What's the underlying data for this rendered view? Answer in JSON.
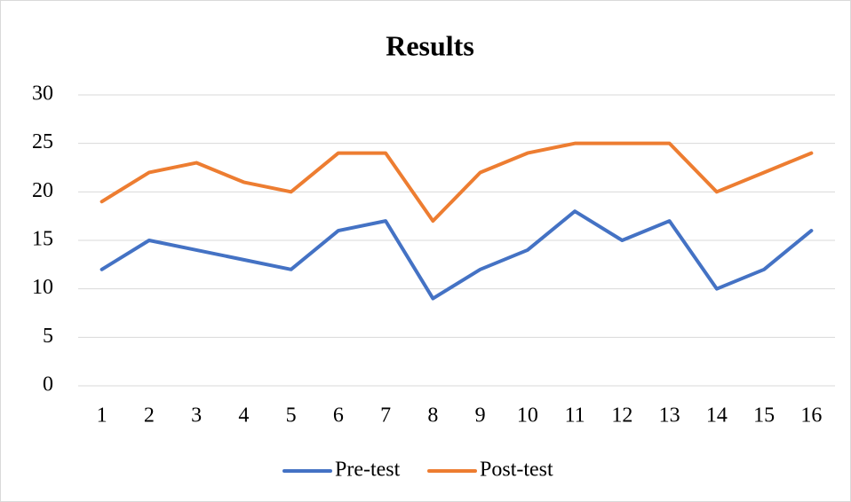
{
  "chart_data": {
    "type": "line",
    "title": "Results",
    "categories": [
      "1",
      "2",
      "3",
      "4",
      "5",
      "6",
      "7",
      "8",
      "9",
      "10",
      "11",
      "12",
      "13",
      "14",
      "15",
      "16"
    ],
    "series": [
      {
        "name": "Pre-test",
        "color": "#4472c4",
        "values": [
          12,
          15,
          14,
          13,
          12,
          16,
          17,
          9,
          12,
          14,
          18,
          15,
          17,
          10,
          12,
          16
        ]
      },
      {
        "name": "Post-test",
        "color": "#ed7d31",
        "values": [
          19,
          22,
          23,
          21,
          20,
          24,
          24,
          17,
          22,
          24,
          25,
          25,
          25,
          20,
          22,
          24
        ]
      }
    ],
    "ylim": [
      0,
      30
    ],
    "yticks": [
      0,
      5,
      10,
      15,
      20,
      25,
      30
    ],
    "grid": true,
    "legend": "bottom"
  }
}
